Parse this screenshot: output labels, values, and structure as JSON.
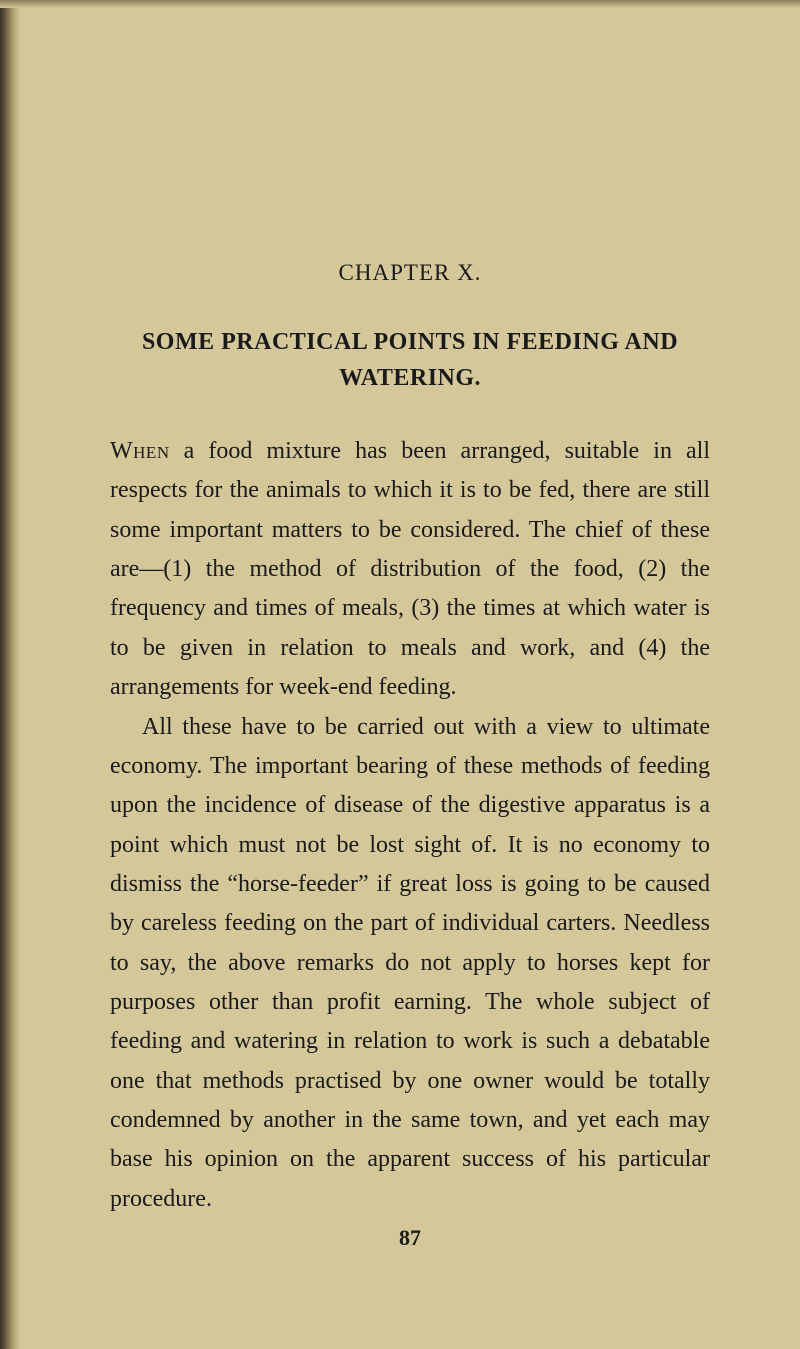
{
  "page": {
    "background_color": "#d4c89a",
    "text_color": "#1a1a1a",
    "edge_shadow_color": "#3a3228"
  },
  "chapter": {
    "label": "CHAPTER X.",
    "title_line1": "SOME PRACTICAL POINTS IN FEEDING AND",
    "title_line2": "WATERING."
  },
  "body": {
    "paragraph1_first_word": "When",
    "paragraph1_rest": " a food mixture has been arranged, suitable in all respects for the animals to which it is to be fed, there are still some important matters to be considered. The chief of these are—(1) the method of distribution of the food, (2) the frequency and times of meals, (3) the times at which water is to be given in relation to meals and work, and (4) the arrangements for week-end feeding.",
    "paragraph2": "All these have to be carried out with a view to ultimate economy. The important bearing of these methods of feeding upon the incidence of disease of the digestive apparatus is a point which must not be lost sight of. It is no economy to dismiss the “horse-feeder” if great loss is going to be caused by careless feeding on the part of individual carters. Needless to say, the above remarks do not apply to horses kept for purposes other than profit earning. The whole subject of feeding and watering in relation to work is such a debatable one that methods practised by one owner would be totally condemned by another in the same town, and yet each may base his opinion on the apparent success of his particular procedure."
  },
  "page_number": "87",
  "typography": {
    "body_font_size": 24,
    "body_line_height": 1.64,
    "chapter_label_font_size": 23,
    "title_font_size": 24,
    "page_number_font_size": 22
  }
}
